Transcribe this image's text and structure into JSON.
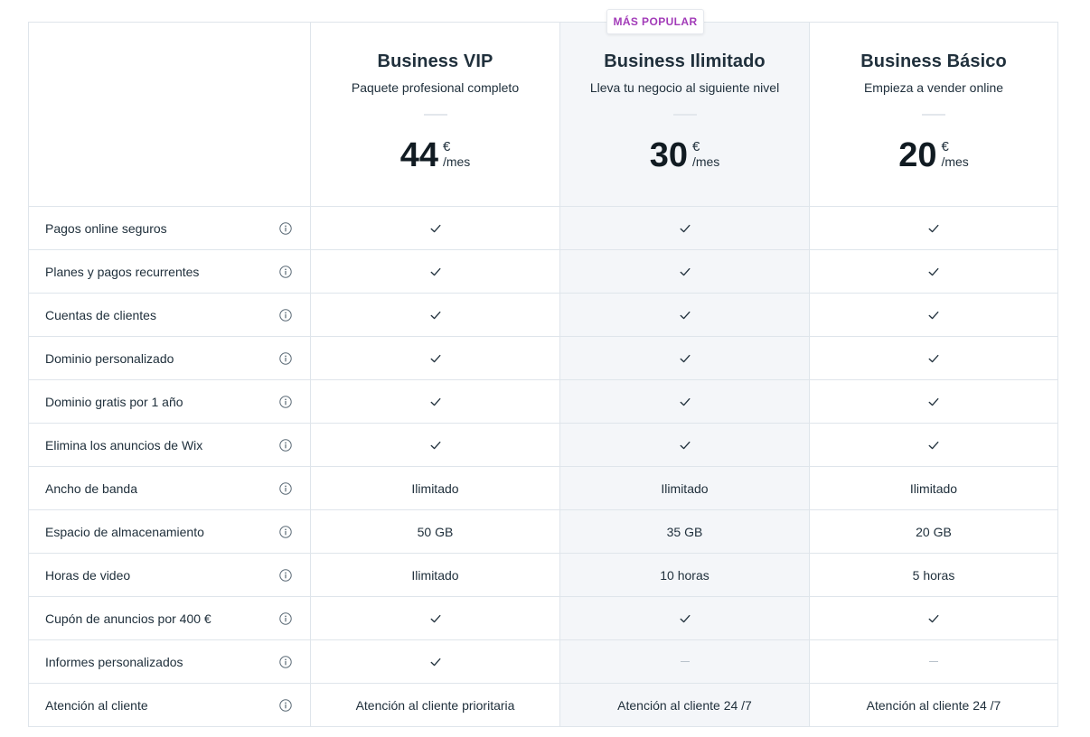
{
  "badge": {
    "popular_label": "MÁS POPULAR"
  },
  "plans": [
    {
      "name": "Business VIP",
      "description": "Paquete profesional completo",
      "price": "44",
      "currency": "€",
      "period": "/mes"
    },
    {
      "name": "Business Ilimitado",
      "description": "Lleva tu negocio al siguiente nivel",
      "price": "30",
      "currency": "€",
      "period": "/mes"
    },
    {
      "name": "Business Básico",
      "description": "Empieza a vender online",
      "price": "20",
      "currency": "€",
      "period": "/mes"
    }
  ],
  "features": [
    {
      "label": "Pagos online seguros",
      "values": [
        "check",
        "check",
        "check"
      ]
    },
    {
      "label": "Planes y pagos recurrentes",
      "values": [
        "check",
        "check",
        "check"
      ]
    },
    {
      "label": "Cuentas de clientes",
      "values": [
        "check",
        "check",
        "check"
      ]
    },
    {
      "label": "Dominio personalizado",
      "values": [
        "check",
        "check",
        "check"
      ]
    },
    {
      "label": "Dominio gratis por 1 año",
      "values": [
        "check",
        "check",
        "check"
      ]
    },
    {
      "label": "Elimina los anuncios de Wix",
      "values": [
        "check",
        "check",
        "check"
      ]
    },
    {
      "label": "Ancho de banda",
      "values": [
        "Ilimitado",
        "Ilimitado",
        "Ilimitado"
      ]
    },
    {
      "label": "Espacio de almacenamiento",
      "values": [
        "50 GB",
        "35 GB",
        "20 GB"
      ]
    },
    {
      "label": "Horas de video",
      "values": [
        "Ilimitado",
        "10 horas",
        "5 horas"
      ]
    },
    {
      "label": "Cupón de anuncios por 400 €",
      "values": [
        "check",
        "check",
        "check"
      ]
    },
    {
      "label": "Informes personalizados",
      "values": [
        "check",
        "dash",
        "dash"
      ]
    },
    {
      "label": "Atención al cliente",
      "values": [
        "Atención al cliente prioritaria",
        "Atención al cliente 24 /7",
        "Atención al cliente 24 /7"
      ]
    }
  ],
  "icons": {
    "info": "info-icon",
    "check": "checkmark-icon",
    "dash": "dash-icon"
  },
  "colors": {
    "accent": "#a23bb8",
    "highlight_column": "#f4f6f9",
    "border": "#dfe5eb",
    "text": "#20303c"
  }
}
